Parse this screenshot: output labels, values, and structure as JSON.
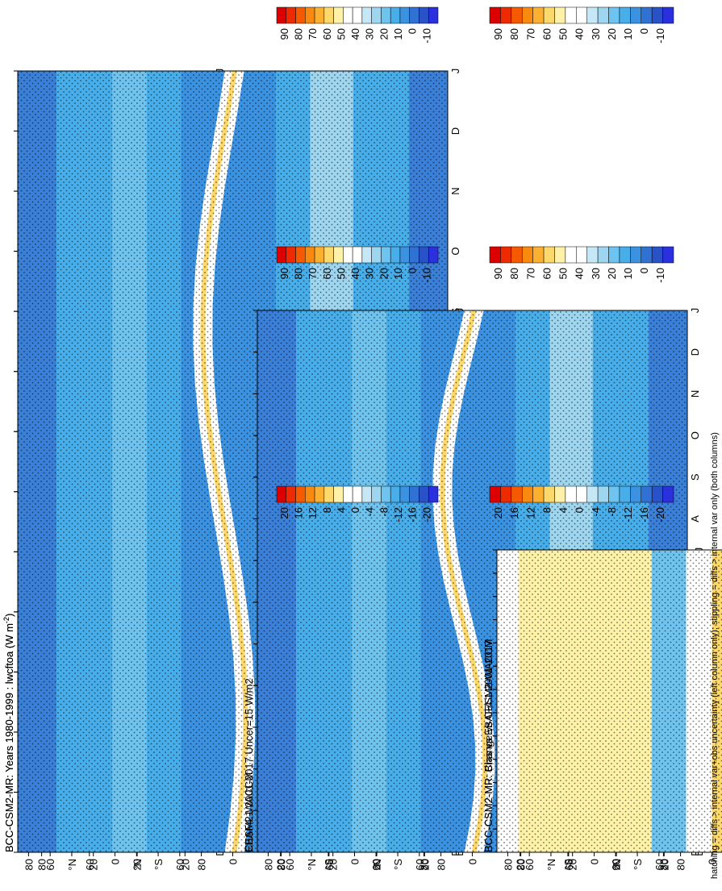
{
  "footer_note": "hatching = diffs > internal var+obs uncertainty (left column only); stippling = diffs > internal var only (both columns)",
  "chart_data": [
    {
      "type": "heatmap",
      "id": "p1",
      "title": "BCC-CSM2-MR: Years 1980-1999 : lwcftoa (W m",
      "title_sup": "-2",
      "title_tail": ")",
      "variable": "lwcftoa",
      "units": "W m-2",
      "x_ticks": [
        "D",
        "J",
        "F",
        "M",
        "A",
        "M",
        "J",
        "J",
        "A",
        "S",
        "O",
        "N",
        "D",
        "J"
      ],
      "y_ticks": [
        "80",
        "60",
        "°N",
        "20",
        "0",
        "20",
        "°S",
        "60",
        "80"
      ],
      "colorbar_ticks": [
        "90",
        "80",
        "70",
        "60",
        "50",
        "40",
        "30",
        "20",
        "10",
        "0",
        "-10"
      ],
      "kind": "abs",
      "hatched": true
    },
    {
      "type": "heatmap",
      "id": "p2",
      "title": "BCC-CSM2-MR: Years 1980-1999 : lwcftoa (W m",
      "title_sup": "-2",
      "title_tail": ")",
      "variable": "lwcftoa",
      "units": "W m-2",
      "x_ticks": [
        "D",
        "J",
        "F",
        "M",
        "A",
        "M",
        "J",
        "J",
        "A",
        "S",
        "O",
        "N",
        "D",
        "J"
      ],
      "y_ticks": [
        "80",
        "60",
        "°N",
        "20",
        "0",
        "20",
        "°S",
        "60",
        "80"
      ],
      "colorbar_ticks": [
        "90",
        "80",
        "70",
        "60",
        "50",
        "40",
        "30",
        "20",
        "10",
        "0",
        "-10"
      ],
      "kind": "abs",
      "hatched": false
    },
    {
      "type": "heatmap",
      "id": "p3",
      "title": "EBAF4.1 2001-2017 Uncer=15 W/m2",
      "x_ticks": [
        "D",
        "J",
        "F",
        "M",
        "A",
        "M",
        "J",
        "J",
        "A",
        "S",
        "O",
        "N",
        "D",
        "J"
      ],
      "y_ticks": [
        "80",
        "60",
        "°N",
        "20",
        "0",
        "20",
        "°S",
        "60",
        "80"
      ],
      "colorbar_ticks": [
        "90",
        "80",
        "70",
        "60",
        "50",
        "40",
        "30",
        "20",
        "10",
        "0",
        "-10"
      ],
      "kind": "abs",
      "hatched": true
    },
    {
      "type": "heatmap",
      "id": "p4",
      "title": "CESM2-WACCM",
      "x_ticks": [
        "D",
        "J",
        "F",
        "M",
        "A",
        "M",
        "J",
        "J",
        "A",
        "S",
        "O",
        "N",
        "D",
        "J"
      ],
      "y_ticks": [
        "80",
        "60",
        "°N",
        "20",
        "0",
        "20",
        "°S",
        "60",
        "80"
      ],
      "colorbar_ticks": [
        "90",
        "80",
        "70",
        "60",
        "50",
        "40",
        "30",
        "20",
        "10",
        "0",
        "-10"
      ],
      "kind": "abs",
      "hatched": false
    },
    {
      "type": "heatmap",
      "id": "p5",
      "title": "BCC-CSM2-MR: Bias vs EBAF4.1 2001-2017",
      "x_ticks": [
        "D",
        "J",
        "F",
        "M",
        "A",
        "M",
        "J",
        "J",
        "A",
        "S",
        "O",
        "N",
        "D",
        "J"
      ],
      "y_ticks": [
        "80",
        "60",
        "°N",
        "20",
        "0",
        "20",
        "°S",
        "60",
        "80"
      ],
      "colorbar_ticks": [
        "20",
        "16",
        "12",
        "8",
        "4",
        "0",
        "-4",
        "-8",
        "-12",
        "-16",
        "-20"
      ],
      "kind": "bias",
      "hatched": true
    },
    {
      "type": "heatmap",
      "id": "p6",
      "title": "BCC-CSM2-MR: Change vs CESM2-WACCM",
      "x_ticks": [
        "D",
        "J",
        "F",
        "M",
        "A",
        "M",
        "J",
        "J",
        "A",
        "S",
        "O",
        "N",
        "D",
        "J"
      ],
      "y_ticks": [
        "80",
        "60",
        "°N",
        "20",
        "0",
        "20",
        "°S",
        "60",
        "80"
      ],
      "colorbar_ticks": [
        "20",
        "16",
        "12",
        "8",
        "4",
        "0",
        "-4",
        "-8",
        "-12",
        "-16",
        "-20"
      ],
      "kind": "change",
      "hatched": false
    }
  ],
  "colorbars": {
    "abs": [
      "#dd0000",
      "#ee2a00",
      "#f55a00",
      "#f98a10",
      "#fbb030",
      "#fdd86a",
      "#fff2a8",
      "#ffffff",
      "#ffffff",
      "#c6e8f6",
      "#9ed6f0",
      "#6ec4ee",
      "#47aeea",
      "#3b92e0",
      "#2f72d4",
      "#2a52c8",
      "#2a30dd"
    ],
    "diff": [
      "#dd0000",
      "#ee2a00",
      "#f55a00",
      "#f98a10",
      "#fbb030",
      "#fdd86a",
      "#fff2a8",
      "#ffffff",
      "#ffffff",
      "#c6e8f6",
      "#9ed6f0",
      "#6ec4ee",
      "#47aeea",
      "#3b92e0",
      "#2f72d4",
      "#2a52c8",
      "#2a30dd"
    ]
  }
}
